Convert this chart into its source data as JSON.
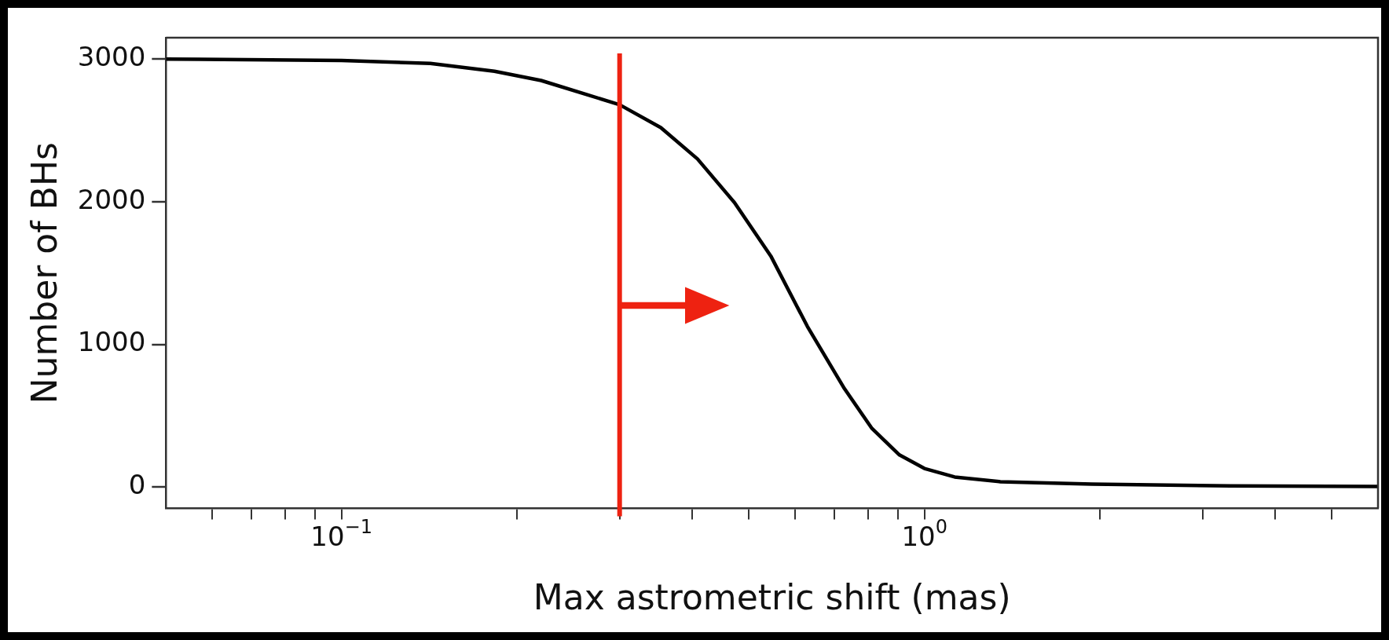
{
  "chart_data": {
    "type": "line",
    "xlabel": "Max astrometric shift (mas)",
    "ylabel": "Number of BHs",
    "log": "x",
    "marker": "none",
    "line_style": "solid",
    "grid": false,
    "legend": false,
    "series": [
      {
        "color": "#000000",
        "x": [
          0.05,
          0.1,
          0.142,
          0.183,
          0.22,
          0.264,
          0.3,
          0.353,
          0.408,
          0.472,
          0.545,
          0.63,
          0.729,
          0.813,
          0.906,
          1.0,
          1.127,
          1.35,
          1.94,
          3.35,
          6
        ],
        "values": [
          3000,
          2990,
          2970,
          2915,
          2850,
          2750,
          2680,
          2520,
          2300,
          1995,
          1620,
          1125,
          690,
          410,
          225,
          130,
          70,
          37,
          20,
          8,
          3
        ]
      }
    ],
    "xlim": [
      0.05,
      6
    ],
    "xticks": [
      {
        "value": 0.06,
        "label": null
      },
      {
        "value": 0.07,
        "label": null
      },
      {
        "value": 0.08,
        "label": null
      },
      {
        "value": 0.09,
        "label": null
      },
      {
        "value": 0.1,
        "label": "10$^{−1}$"
      },
      {
        "value": 0.2,
        "label": null
      },
      {
        "value": 0.3,
        "label": null
      },
      {
        "value": 0.4,
        "label": null
      },
      {
        "value": 0.5,
        "label": null
      },
      {
        "value": 0.6,
        "label": null
      },
      {
        "value": 0.7,
        "label": null
      },
      {
        "value": 0.8,
        "label": null
      },
      {
        "value": 0.9,
        "label": null
      },
      {
        "value": 1,
        "label": "10$^{0}$"
      },
      {
        "value": 2,
        "label": null
      },
      {
        "value": 3,
        "label": null
      },
      {
        "value": 4,
        "label": null
      },
      {
        "value": 5,
        "label": null
      }
    ],
    "ylim": [
      -150,
      3150
    ],
    "yticks": [
      0,
      1000,
      2000,
      3000
    ],
    "ref_lines": [
      {
        "axis": "x",
        "value": 0.3,
        "color": "#ee2211",
        "line_style": "solid"
      }
    ]
  }
}
